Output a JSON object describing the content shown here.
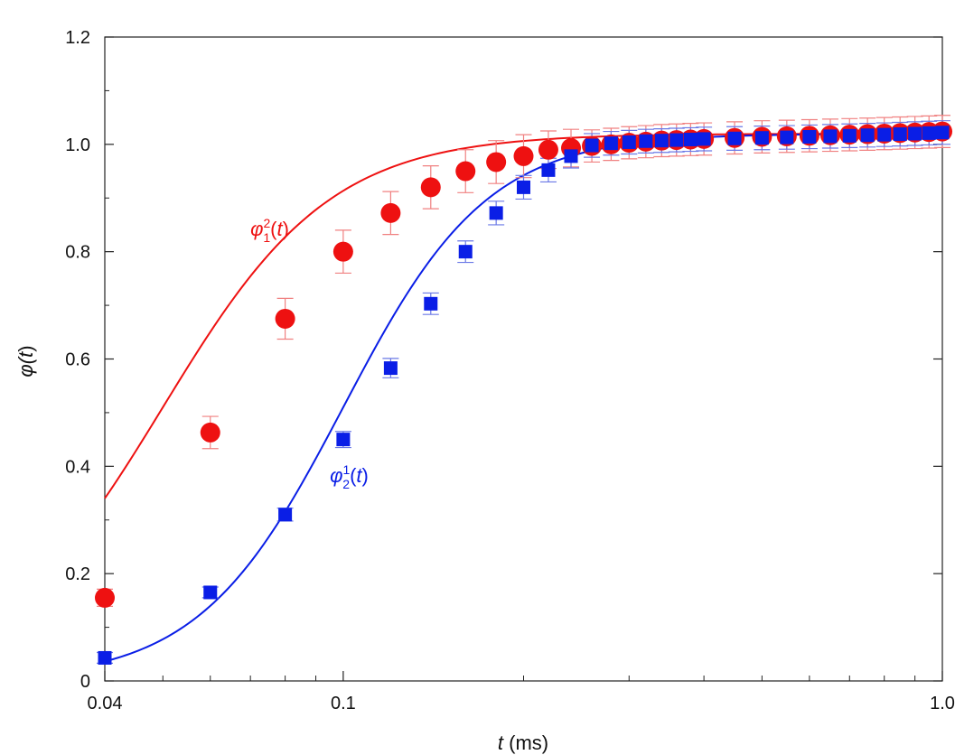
{
  "chart_data": {
    "type": "scatter",
    "xscale": "log",
    "xlim": [
      0.04,
      1.0
    ],
    "ylim": [
      0,
      1.2
    ],
    "xticks": [
      {
        "value": 0.04,
        "label": "0.04"
      },
      {
        "value": 0.1,
        "label": "0.1"
      },
      {
        "value": 1.0,
        "label": "1.0"
      }
    ],
    "yticks": [
      {
        "value": 0,
        "label": "0"
      },
      {
        "value": 0.2,
        "label": "0.2"
      },
      {
        "value": 0.4,
        "label": "0.4"
      },
      {
        "value": 0.6,
        "label": "0.6"
      },
      {
        "value": 0.8,
        "label": "0.8"
      },
      {
        "value": 1.0,
        "label": "1.0"
      },
      {
        "value": 1.2,
        "label": "1.2"
      }
    ],
    "xlabel": {
      "var": "t",
      "rest": " (ms)"
    },
    "ylabel": {
      "text": "φ(",
      "var": "t",
      "close": ")"
    },
    "series": [
      {
        "name": "φ12(t)",
        "color": "#ee1111",
        "errorColor": "#f08080",
        "marker": "circle",
        "x": [
          0.04,
          0.06,
          0.08,
          0.1,
          0.12,
          0.14,
          0.16,
          0.18,
          0.2,
          0.22,
          0.24,
          0.26,
          0.28,
          0.3,
          0.32,
          0.34,
          0.36,
          0.38,
          0.4,
          0.45,
          0.5,
          0.55,
          0.6,
          0.65,
          0.7,
          0.75,
          0.8,
          0.85,
          0.9,
          0.95,
          1.0
        ],
        "y": [
          0.155,
          0.463,
          0.675,
          0.8,
          0.872,
          0.92,
          0.95,
          0.967,
          0.978,
          0.99,
          0.993,
          0.997,
          1.0,
          1.003,
          1.005,
          1.007,
          1.008,
          1.009,
          1.01,
          1.012,
          1.014,
          1.015,
          1.016,
          1.017,
          1.018,
          1.019,
          1.02,
          1.021,
          1.022,
          1.023,
          1.024
        ],
        "err": [
          0.016,
          0.03,
          0.038,
          0.04,
          0.04,
          0.04,
          0.04,
          0.04,
          0.04,
          0.035,
          0.035,
          0.03,
          0.03,
          0.03,
          0.03,
          0.03,
          0.03,
          0.03,
          0.03,
          0.03,
          0.03,
          0.03,
          0.03,
          0.03,
          0.03,
          0.03,
          0.03,
          0.03,
          0.03,
          0.03,
          0.03
        ],
        "fit": {
          "x0": 0.05,
          "p": 3.1
        }
      },
      {
        "name": "φ21(t)",
        "color": "#0a1ee6",
        "errorColor": "#6a78e6",
        "marker": "square",
        "x": [
          0.04,
          0.06,
          0.08,
          0.1,
          0.12,
          0.14,
          0.16,
          0.18,
          0.2,
          0.22,
          0.24,
          0.26,
          0.28,
          0.3,
          0.32,
          0.34,
          0.36,
          0.38,
          0.4,
          0.45,
          0.5,
          0.55,
          0.6,
          0.65,
          0.7,
          0.75,
          0.8,
          0.85,
          0.9,
          0.95,
          1.0
        ],
        "y": [
          0.043,
          0.165,
          0.31,
          0.45,
          0.583,
          0.703,
          0.8,
          0.872,
          0.92,
          0.952,
          0.978,
          0.998,
          1.002,
          1.004,
          1.006,
          1.007,
          1.008,
          1.009,
          1.01,
          1.011,
          1.012,
          1.013,
          1.014,
          1.015,
          1.016,
          1.017,
          1.018,
          1.019,
          1.02,
          1.021,
          1.022
        ],
        "err": [
          0.01,
          0.01,
          0.012,
          0.015,
          0.018,
          0.02,
          0.02,
          0.022,
          0.022,
          0.022,
          0.022,
          0.022,
          0.022,
          0.022,
          0.022,
          0.022,
          0.022,
          0.022,
          0.022,
          0.022,
          0.022,
          0.022,
          0.022,
          0.022,
          0.022,
          0.022,
          0.022,
          0.022,
          0.022,
          0.022,
          0.022
        ],
        "fit": {
          "x0": 0.1,
          "p": 3.6
        }
      }
    ],
    "annotations": [
      {
        "series": 0,
        "base": "φ",
        "sub": "1",
        "sup": "2",
        "var": "t",
        "atX": 0.07,
        "atY": 0.83
      },
      {
        "series": 1,
        "base": "φ",
        "sub": "2",
        "sup": "1",
        "var": "t",
        "atX": 0.095,
        "atY": 0.37
      }
    ]
  }
}
